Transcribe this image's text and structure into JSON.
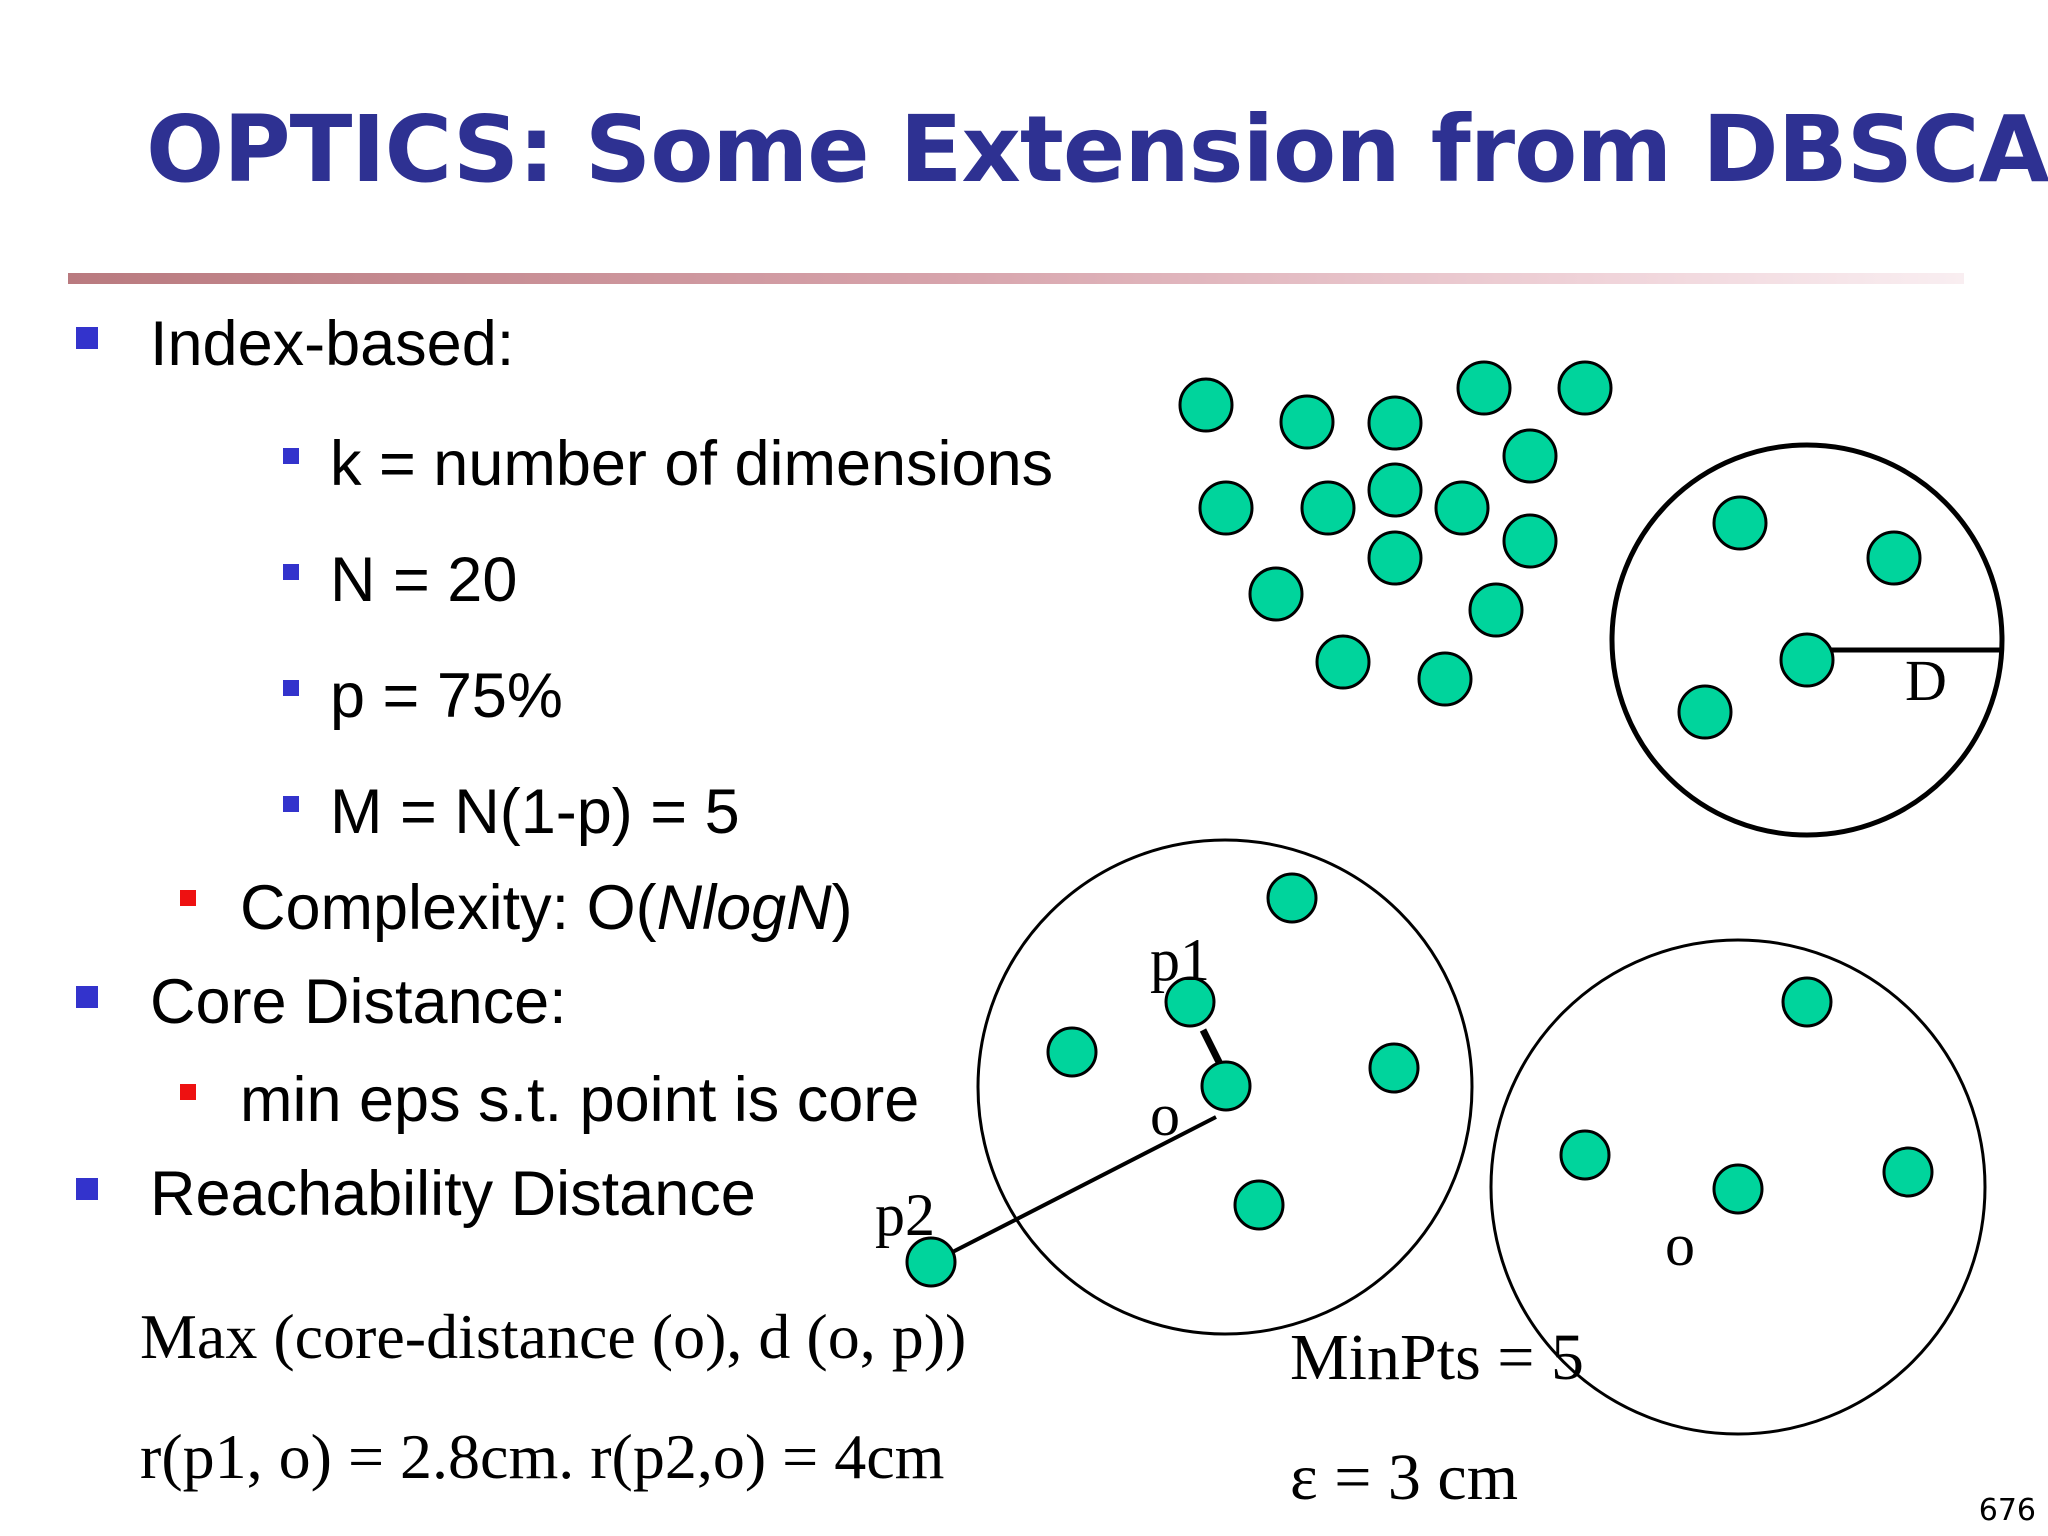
{
  "title": "OPTICS: Some Extension from DBSCAN",
  "bullets": {
    "index_based": "Index-based:",
    "k_def": "k = number of dimensions",
    "n_def": "N = 20",
    "p_def": "p = 75%",
    "m_def": "M = N(1-p) = 5",
    "complexity_prefix": "Complexity:  O(",
    "complexity_italic": "NlogN",
    "complexity_suffix": ")",
    "core_distance": "Core Distance:",
    "core_def": "min eps s.t. point is core",
    "reachability": "Reachability Distance"
  },
  "formulas": {
    "max_formula": "Max (core-distance (o), d (o, p))",
    "r_values": "r(p1, o) = 2.8cm.  r(p2,o) = 4cm",
    "minpts": "MinPts = 5",
    "epsilon": "ε  = 3 cm"
  },
  "diagram_labels": {
    "D": "D",
    "p1": "p1",
    "p2": "p2",
    "o_left": "o",
    "o_right": "o"
  },
  "page_number": "676",
  "colors": {
    "title": "#2e3192",
    "point_fill": "#00d49c",
    "blue_marker": "#3333cc",
    "red_marker": "#ee1111"
  }
}
